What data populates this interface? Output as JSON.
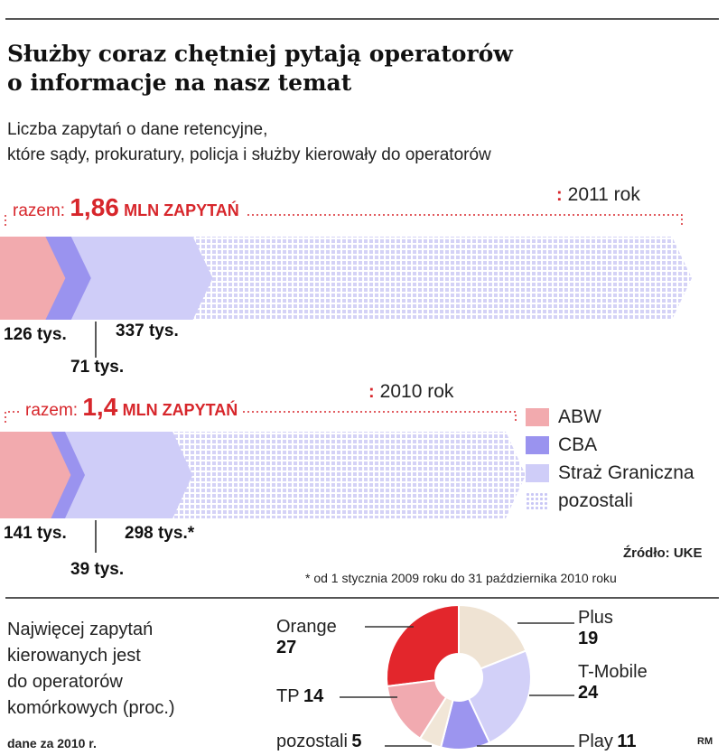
{
  "title_line1": "Służby coraz chętniej pytają operatorów",
  "title_line2": "o informacje na nasz temat",
  "subtitle_line1": "Liczba zapytań o dane retencyjne,",
  "subtitle_line2": "które sądy, prokuratury, policja i służby kierowały do operatorów",
  "colors": {
    "ABW": "#f2aaae",
    "CBA": "#9a93ef",
    "SG": "#cfcdf8",
    "pozostali": "#d4d2f6",
    "accent": "#d7262b"
  },
  "chart_data": [
    {
      "type": "bar",
      "stacked": true,
      "orientation": "horizontal",
      "year_label": "2011 rok",
      "total_prefix": "razem:",
      "total_value": "1,86",
      "total_unit": "MLN ZAPYTAŃ",
      "total": 1860,
      "series": [
        {
          "name": "ABW",
          "value": 126,
          "label": "126 tys."
        },
        {
          "name": "CBA",
          "value": 71,
          "label": "71 tys."
        },
        {
          "name": "Straż Graniczna",
          "value": 337,
          "label": "337 tys."
        },
        {
          "name": "pozostali",
          "value": 1326,
          "label": ""
        }
      ]
    },
    {
      "type": "bar",
      "stacked": true,
      "orientation": "horizontal",
      "year_label": "2010 rok",
      "total_prefix": "razem:",
      "total_value": "1,4",
      "total_unit": "MLN ZAPYTAŃ",
      "total": 1400,
      "series": [
        {
          "name": "ABW",
          "value": 141,
          "label": "141 tys."
        },
        {
          "name": "CBA",
          "value": 39,
          "label": "39 tys."
        },
        {
          "name": "Straż Graniczna",
          "value": 298,
          "label": "298 tys.*"
        },
        {
          "name": "pozostali",
          "value": 922,
          "label": ""
        }
      ]
    },
    {
      "type": "pie",
      "slices": [
        {
          "name": "Orange",
          "value": 27,
          "color": "#e3262c"
        },
        {
          "name": "Plus",
          "value": 19,
          "color": "#efe3d3"
        },
        {
          "name": "T-Mobile",
          "value": 24,
          "color": "#d2d0f8"
        },
        {
          "name": "Play",
          "value": 11,
          "color": "#9c95ef"
        },
        {
          "name": "pozostali",
          "value": 5,
          "color": "#f1e6d7"
        },
        {
          "name": "TP",
          "value": 14,
          "color": "#f1aab0"
        }
      ]
    }
  ],
  "legend": [
    {
      "name": "ABW",
      "color": "#f2aaae",
      "pattern": false
    },
    {
      "name": "CBA",
      "color": "#9a93ef",
      "pattern": false
    },
    {
      "name": "Straż Graniczna",
      "color": "#cfcdf8",
      "pattern": false
    },
    {
      "name": "pozostali",
      "color": "#d4d2f6",
      "pattern": true
    }
  ],
  "source": "Źródło: UKE",
  "footnote": "* od 1 stycznia 2009 roku do 31 października 2010 roku",
  "pie_note_lines": [
    "Najwięcej zapytań",
    "kierowanych jest",
    "do operatorów",
    "komórkowych (proc.)"
  ],
  "pie_data_note": "dane za 2010 r.",
  "credit": "RM"
}
